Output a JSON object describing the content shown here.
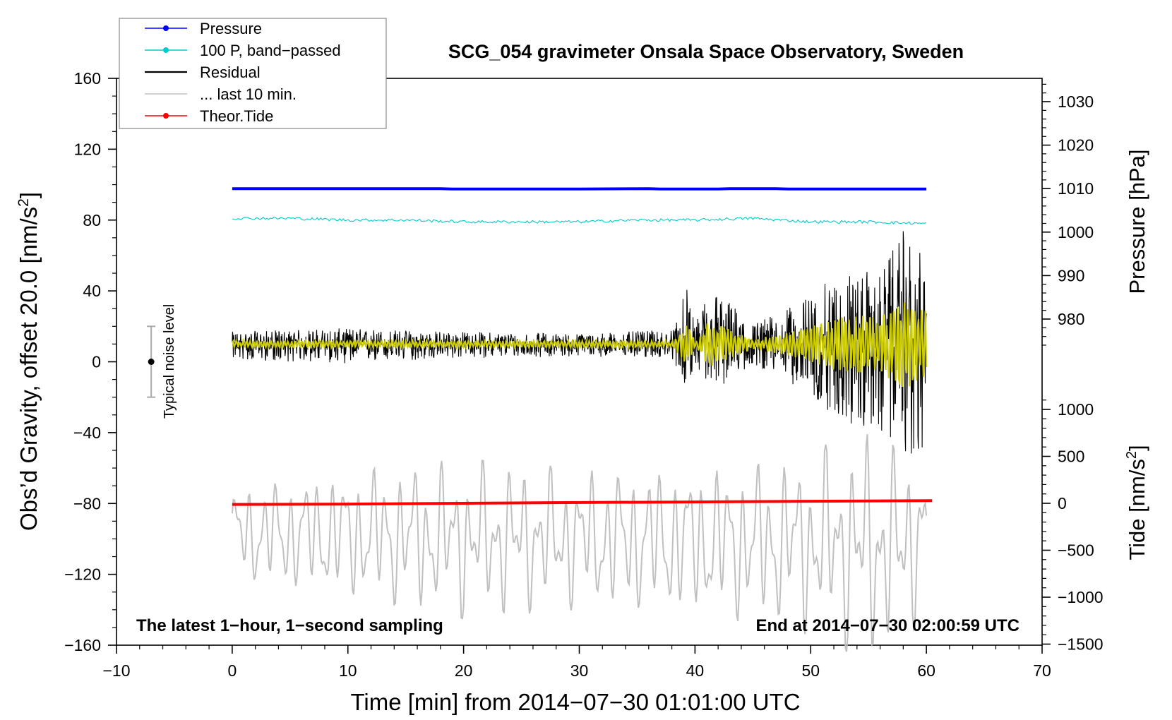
{
  "chart_data": {
    "type": "line",
    "title": "SCG_054 gravimeter Onsala Space Observatory, Sweden",
    "xlabel": "Time [min] from 2014−07−30 01:01:00 UTC",
    "ylabel_left_main": "Obs’d Gravity, offset 20.0 [nm/s",
    "ylabel_left_sup": "2",
    "ylabel_left_close": "]",
    "ylabel_pressure": "Pressure [hPa]",
    "ylabel_tide_main": "Tide [nm/s",
    "ylabel_tide_sup": "2",
    "ylabel_tide_close": "]",
    "xlim": [
      -10,
      70
    ],
    "ylim": [
      -160,
      160
    ],
    "pressure_lim": [
      968,
      1037
    ],
    "tide_lim": [
      -1500,
      1500
    ],
    "x_ticks": [
      -10,
      0,
      10,
      20,
      30,
      40,
      50,
      60,
      70
    ],
    "x_tick_labels": [
      "−10",
      "0",
      "10",
      "20",
      "30",
      "40",
      "50",
      "60",
      "70"
    ],
    "y_ticks": [
      -160,
      -120,
      -80,
      -40,
      0,
      40,
      80,
      120,
      160
    ],
    "y_tick_labels": [
      "−160",
      "−120",
      "−80",
      "−40",
      "0",
      "40",
      "80",
      "120",
      "160"
    ],
    "pressure_ticks": [
      980,
      990,
      1000,
      1010,
      1020,
      1030
    ],
    "pressure_tick_labels": [
      "980",
      "990",
      "1000",
      "1010",
      "1020",
      "1030"
    ],
    "tide_ticks": [
      -1500,
      -1000,
      -500,
      0,
      500,
      1000
    ],
    "tide_tick_labels": [
      "−1500",
      "−1000",
      "−500",
      "0",
      "500",
      "1000"
    ],
    "legend": [
      {
        "name": "Pressure",
        "color": "#0000ff",
        "marker": true
      },
      {
        "name": "100 P, band−passed",
        "color": "#00cccc",
        "marker": true
      },
      {
        "name": "Residual",
        "color": "#000000",
        "marker": false
      },
      {
        "name": "... last 10 min.",
        "color": "#c0c0c0",
        "marker": false
      },
      {
        "name": "Theor.Tide",
        "color": "#ff0000",
        "marker": true
      }
    ],
    "legend_position": "top-left",
    "annotation_left": "The latest 1−hour, 1−second sampling",
    "annotation_right": "End at 2014−07−30 02:00:59 UTC",
    "noise_label": "Typical noise level",
    "noise_bar": {
      "x": -7,
      "center": 0,
      "half_range": 20
    },
    "series": [
      {
        "name": "Pressure",
        "color": "#0000ff",
        "axis": "pressure",
        "x": [
          0,
          10,
          18,
          19,
          30,
          36,
          37,
          42,
          43,
          47,
          48,
          60
        ],
        "values": [
          1010.0,
          1010.0,
          1010.0,
          1009.9,
          1009.9,
          1010.0,
          1009.9,
          1009.9,
          1010.0,
          1010.0,
          1009.9,
          1009.9
        ]
      },
      {
        "name": "100 P, band−passed",
        "color": "#00cccc",
        "axis": "gravity",
        "x": [
          0,
          5,
          10,
          15,
          20,
          25,
          30,
          35,
          40,
          45,
          50,
          55,
          60
        ],
        "values": [
          81,
          81,
          80,
          80,
          79,
          79,
          79,
          80,
          80,
          81,
          79,
          79,
          78
        ]
      },
      {
        "name": "Residual",
        "color": "#000000",
        "axis": "gravity",
        "x": [
          0,
          10,
          20,
          30,
          38,
          39.3,
          40,
          41.2,
          45,
          48,
          50,
          52,
          54,
          56,
          58,
          59,
          60
        ],
        "envelope_top": [
          17,
          19,
          17,
          16,
          18,
          42,
          20,
          45,
          22,
          30,
          38,
          48,
          52,
          50,
          74,
          65,
          58
        ],
        "envelope_bottom": [
          1,
          -1,
          2,
          3,
          2,
          -16,
          0,
          -19,
          -2,
          -10,
          -22,
          -30,
          -40,
          -42,
          -48,
          -65,
          -48
        ],
        "mean": 10
      },
      {
        "name": "... last 10 min.",
        "color": "#c0c0c0",
        "axis": "gravity",
        "x": [
          0,
          10,
          20,
          30,
          40,
          48,
          52,
          55,
          58,
          60
        ],
        "envelope_top": [
          -70,
          -60,
          -55,
          -60,
          -58,
          -55,
          -45,
          -40,
          -50,
          -48
        ],
        "envelope_bottom": [
          -125,
          -135,
          -145,
          -140,
          -145,
          -150,
          -160,
          -170,
          -160,
          -140
        ],
        "mean": -100
      },
      {
        "name": "Theor.Tide",
        "color": "#ff0000",
        "axis": "tide",
        "x": [
          0,
          10,
          20,
          30,
          40,
          50,
          60.5
        ],
        "values": [
          -12,
          -8,
          0,
          8,
          14,
          22,
          28
        ]
      }
    ]
  }
}
